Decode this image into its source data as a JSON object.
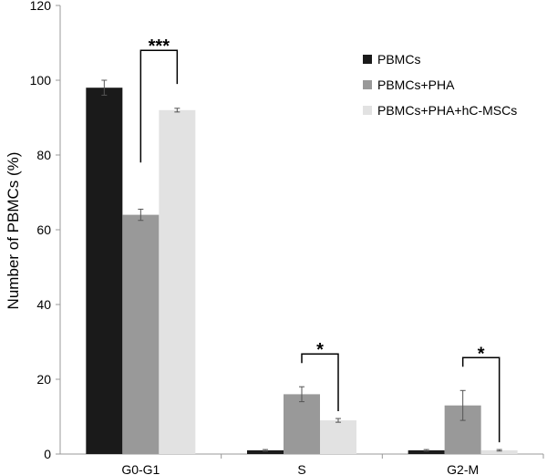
{
  "chart_data": {
    "type": "bar",
    "ylabel": "Number of PBMCs (%)",
    "xlabel": "",
    "title": "",
    "ylim": [
      0,
      120
    ],
    "yticks": [
      0,
      20,
      40,
      60,
      80,
      100,
      120
    ],
    "categories": [
      "G0-G1",
      "S",
      "G2-M"
    ],
    "series": [
      {
        "name": "PBMCs",
        "color": "#1a1a1a",
        "values": [
          98,
          1,
          1
        ],
        "errors": [
          2,
          0.2,
          0.2
        ]
      },
      {
        "name": "PBMCs+PHA",
        "color": "#999999",
        "values": [
          64,
          16,
          13
        ],
        "errors": [
          1.5,
          2,
          4
        ]
      },
      {
        "name": "PBMCs+PHA+hC-MSCs",
        "color": "#e2e2e2",
        "values": [
          92,
          9,
          1
        ],
        "errors": [
          0.5,
          0.5,
          0.2
        ]
      }
    ],
    "significance": [
      {
        "category": "G0-G1",
        "label": "***"
      },
      {
        "category": "S",
        "label": "*"
      },
      {
        "category": "G2-M",
        "label": "*"
      }
    ],
    "legend_position": "top-right",
    "grid": false
  }
}
